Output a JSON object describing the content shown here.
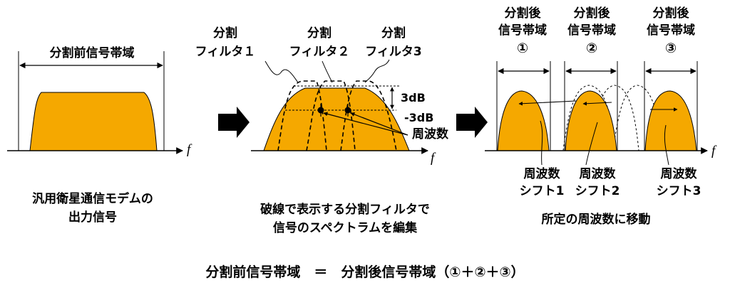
{
  "panel1": {
    "band_label": "分割前信号帯域",
    "caption_line1": "汎用衛星通信モデムの",
    "caption_line2": "出力信号"
  },
  "panel2": {
    "filter1_line1": "分割",
    "filter1_line2": "フィルタ１",
    "filter2_line1": "分割",
    "filter2_line2": "フィルタ２",
    "filter3_line1": "分割",
    "filter3_line2": "フィルタ3",
    "label_3db": "3dB",
    "label_minus3db": "-3dB",
    "label_freq": "周波数",
    "caption_line1": "破線で表示する分割フィルタで",
    "caption_line2": "信号のスペクトラムを編集"
  },
  "panel3": {
    "band1_line1": "分割後",
    "band1_line2": "信号帯域",
    "band1_num": "①",
    "band2_line1": "分割後",
    "band2_line2": "信号帯域",
    "band2_num": "②",
    "band3_line1": "分割後",
    "band3_line2": "信号帯域",
    "band3_num": "③",
    "shift1_line1": "周波数",
    "shift1_line2": "シフト1",
    "shift2_line1": "周波数",
    "shift2_line2": "シフト2",
    "shift3_line1": "周波数",
    "shift3_line2": "シフト3",
    "caption": "所定の周波数に移動"
  },
  "axis_label": "f",
  "equation": "分割前信号帯域　＝　分割後信号帯域（①＋②＋③）",
  "colors": {
    "fill": "#F5A800",
    "stroke": "#000000"
  }
}
